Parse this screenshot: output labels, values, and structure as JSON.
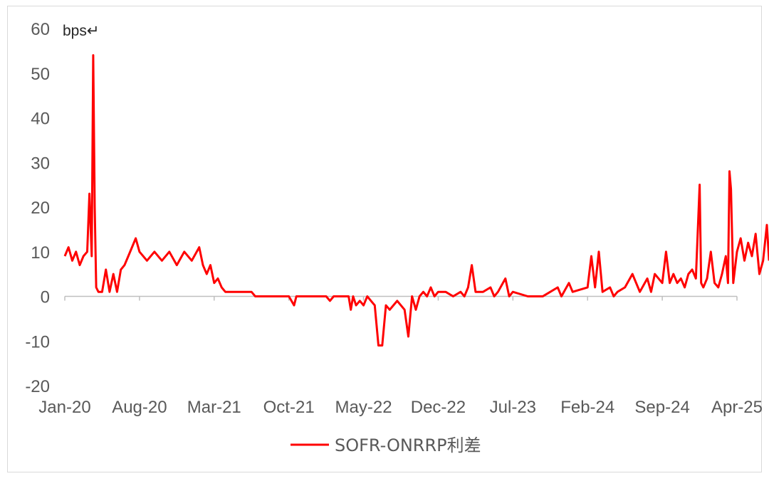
{
  "chart_data": {
    "type": "line",
    "ylabel": "bps↵",
    "ylim": [
      -20,
      60
    ],
    "yticks": [
      60,
      50,
      40,
      30,
      20,
      10,
      0,
      -10,
      -20
    ],
    "xticks": [
      "Jan-20",
      "Aug-20",
      "Mar-21",
      "Oct-21",
      "May-22",
      "Dec-22",
      "Jul-23",
      "Feb-24",
      "Sep-24",
      "Apr-25"
    ],
    "grid": false,
    "legend_position": "bottom-center",
    "series_color": "#ff0000",
    "series": [
      {
        "name": "SOFR-ONRRP利差",
        "points": [
          [
            0.0,
            9
          ],
          [
            0.05,
            11
          ],
          [
            0.1,
            8
          ],
          [
            0.15,
            10
          ],
          [
            0.2,
            7
          ],
          [
            0.25,
            9
          ],
          [
            0.3,
            10
          ],
          [
            0.33,
            23
          ],
          [
            0.36,
            9
          ],
          [
            0.38,
            54
          ],
          [
            0.4,
            20
          ],
          [
            0.42,
            2
          ],
          [
            0.45,
            1
          ],
          [
            0.5,
            1
          ],
          [
            0.55,
            6
          ],
          [
            0.6,
            1
          ],
          [
            0.65,
            5
          ],
          [
            0.7,
            1
          ],
          [
            0.75,
            6
          ],
          [
            0.8,
            7
          ],
          [
            0.85,
            9
          ],
          [
            0.9,
            11
          ],
          [
            0.95,
            13
          ],
          [
            1.0,
            10
          ],
          [
            1.1,
            8
          ],
          [
            1.2,
            10
          ],
          [
            1.3,
            8
          ],
          [
            1.4,
            10
          ],
          [
            1.5,
            7
          ],
          [
            1.6,
            10
          ],
          [
            1.7,
            8
          ],
          [
            1.8,
            11
          ],
          [
            1.85,
            7
          ],
          [
            1.9,
            5
          ],
          [
            1.95,
            7
          ],
          [
            2.0,
            3
          ],
          [
            2.05,
            4
          ],
          [
            2.1,
            2
          ],
          [
            2.15,
            1
          ],
          [
            2.3,
            1
          ],
          [
            2.5,
            1
          ],
          [
            2.55,
            0
          ],
          [
            3.0,
            0
          ],
          [
            3.07,
            -2
          ],
          [
            3.1,
            0
          ],
          [
            3.5,
            0
          ],
          [
            3.55,
            -1
          ],
          [
            3.6,
            0
          ],
          [
            3.8,
            0
          ],
          [
            3.83,
            -3
          ],
          [
            3.86,
            0
          ],
          [
            3.9,
            -2
          ],
          [
            3.95,
            -1
          ],
          [
            4.0,
            -2
          ],
          [
            4.05,
            0
          ],
          [
            4.1,
            -1
          ],
          [
            4.15,
            -2
          ],
          [
            4.2,
            -11
          ],
          [
            4.25,
            -11
          ],
          [
            4.3,
            -2
          ],
          [
            4.35,
            -3
          ],
          [
            4.4,
            -2
          ],
          [
            4.45,
            -1
          ],
          [
            4.5,
            -2
          ],
          [
            4.55,
            -3
          ],
          [
            4.6,
            -9
          ],
          [
            4.65,
            0
          ],
          [
            4.7,
            -3
          ],
          [
            4.75,
            0
          ],
          [
            4.8,
            1
          ],
          [
            4.85,
            0
          ],
          [
            4.9,
            2
          ],
          [
            4.95,
            0
          ],
          [
            5.0,
            1
          ],
          [
            5.1,
            1
          ],
          [
            5.2,
            0
          ],
          [
            5.3,
            1
          ],
          [
            5.35,
            0
          ],
          [
            5.4,
            2
          ],
          [
            5.45,
            7
          ],
          [
            5.5,
            1
          ],
          [
            5.6,
            1
          ],
          [
            5.7,
            2
          ],
          [
            5.75,
            0
          ],
          [
            5.8,
            1
          ],
          [
            5.9,
            4
          ],
          [
            5.95,
            0
          ],
          [
            6.0,
            1
          ],
          [
            6.2,
            0
          ],
          [
            6.4,
            0
          ],
          [
            6.5,
            1
          ],
          [
            6.6,
            2
          ],
          [
            6.65,
            0
          ],
          [
            6.75,
            3
          ],
          [
            6.8,
            1
          ],
          [
            7.0,
            2
          ],
          [
            7.05,
            9
          ],
          [
            7.1,
            2
          ],
          [
            7.15,
            10
          ],
          [
            7.2,
            1
          ],
          [
            7.3,
            2
          ],
          [
            7.35,
            0
          ],
          [
            7.4,
            1
          ],
          [
            7.5,
            2
          ],
          [
            7.6,
            5
          ],
          [
            7.7,
            1
          ],
          [
            7.8,
            4
          ],
          [
            7.85,
            1
          ],
          [
            7.9,
            5
          ],
          [
            8.0,
            3
          ],
          [
            8.05,
            10
          ],
          [
            8.1,
            3
          ],
          [
            8.15,
            5
          ],
          [
            8.2,
            3
          ],
          [
            8.25,
            4
          ],
          [
            8.3,
            2
          ],
          [
            8.35,
            5
          ],
          [
            8.4,
            6
          ],
          [
            8.45,
            4
          ],
          [
            8.5,
            25
          ],
          [
            8.52,
            3
          ],
          [
            8.55,
            2
          ],
          [
            8.6,
            4
          ],
          [
            8.65,
            10
          ],
          [
            8.7,
            3
          ],
          [
            8.75,
            2
          ],
          [
            8.8,
            5
          ],
          [
            8.85,
            9
          ],
          [
            8.88,
            3
          ],
          [
            8.9,
            28
          ],
          [
            8.92,
            24
          ],
          [
            8.95,
            3
          ],
          [
            9.0,
            10
          ],
          [
            9.05,
            13
          ],
          [
            9.1,
            8
          ],
          [
            9.15,
            12
          ],
          [
            9.2,
            9
          ],
          [
            9.25,
            14
          ],
          [
            9.3,
            5
          ],
          [
            9.35,
            8
          ],
          [
            9.4,
            16
          ],
          [
            9.43,
            8
          ]
        ]
      }
    ]
  }
}
